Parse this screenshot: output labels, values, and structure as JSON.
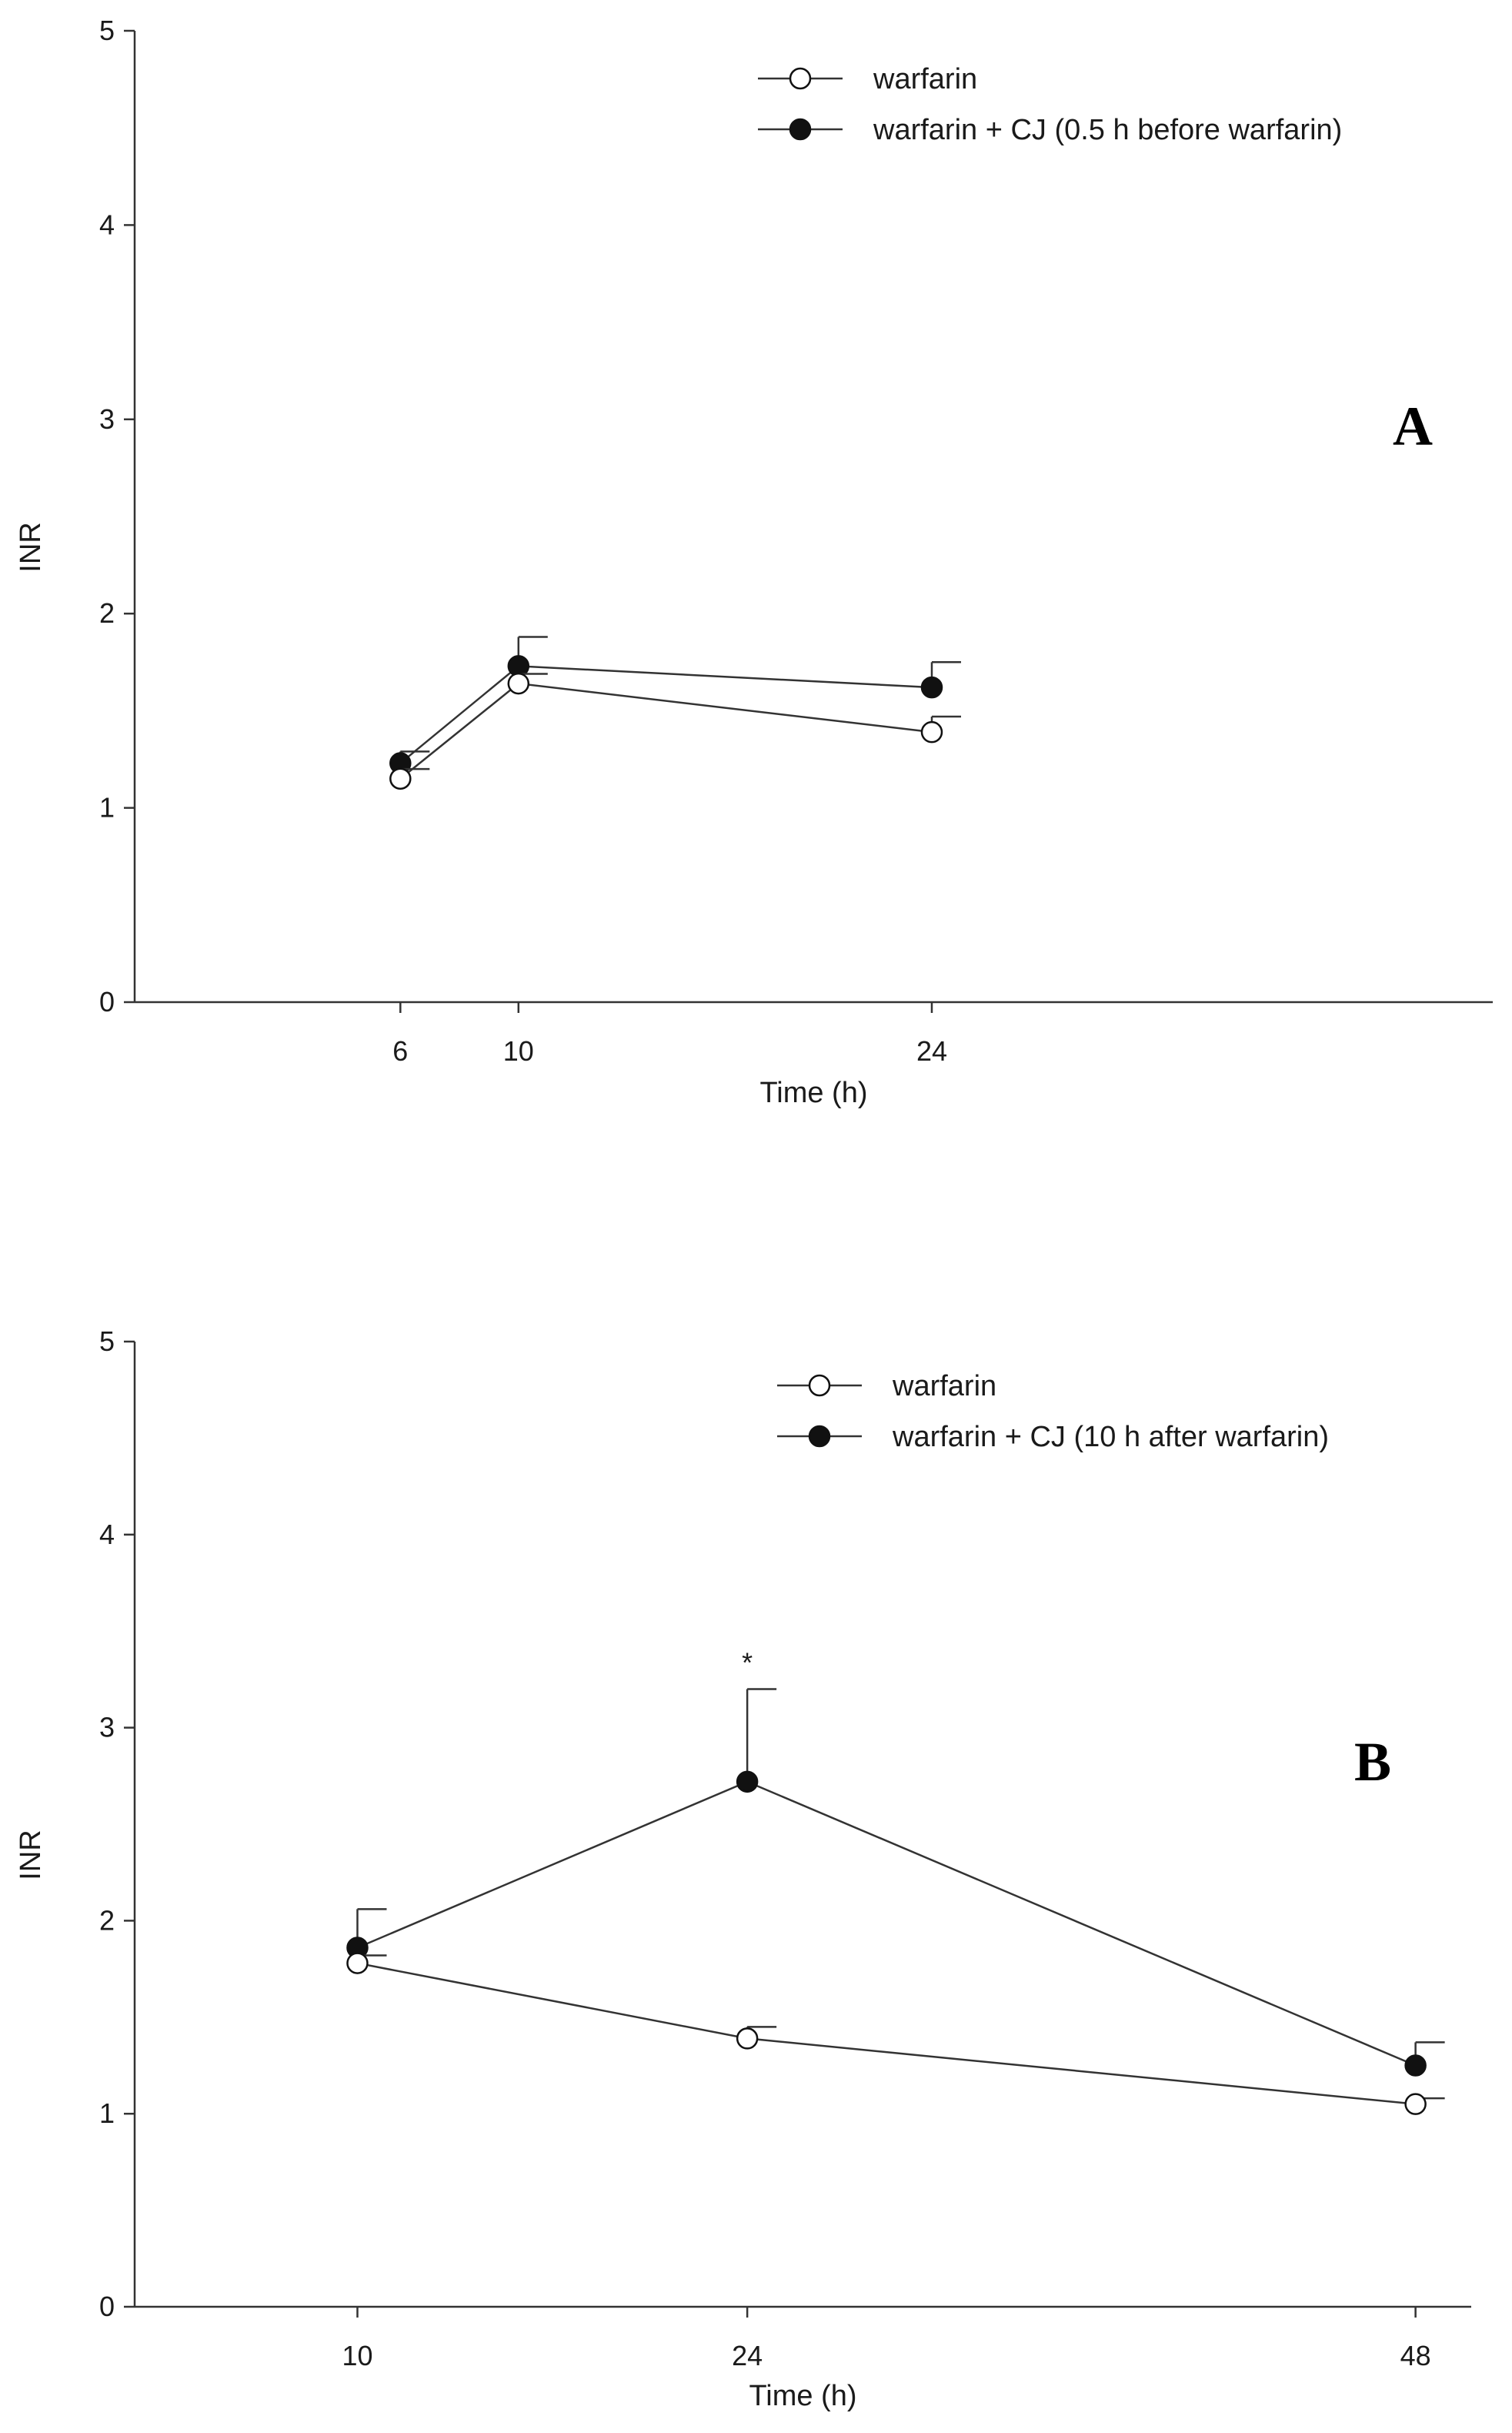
{
  "colors": {
    "line": "#333333",
    "open_fill": "#ffffff",
    "closed_fill": "#111111",
    "text": "#1a1a1a"
  },
  "chart_data": [
    {
      "type": "line",
      "panel": "A",
      "xlabel": "Time (h)",
      "ylabel": "INR",
      "xlim": [
        -3,
        43
      ],
      "ylim": [
        0,
        5
      ],
      "x": [
        6,
        10,
        24
      ],
      "xticks": [
        6,
        10,
        24
      ],
      "yticks": [
        0,
        1,
        2,
        3,
        4,
        5
      ],
      "legend_position": "top-right",
      "series": [
        {
          "name": "warfarin",
          "marker": "open",
          "values": [
            1.15,
            1.64,
            1.39
          ],
          "error": [
            0.05,
            0.05,
            0.08
          ]
        },
        {
          "name": "warfarin + CJ (0.5 h before warfarin)",
          "marker": "closed",
          "values": [
            1.23,
            1.73,
            1.62
          ],
          "error": [
            0.06,
            0.15,
            0.13
          ]
        }
      ],
      "annotations": []
    },
    {
      "type": "line",
      "panel": "B",
      "xlabel": "Time (h)",
      "ylabel": "INR",
      "xlim": [
        2,
        50
      ],
      "ylim": [
        0,
        5
      ],
      "x": [
        10,
        24,
        48
      ],
      "xticks": [
        10,
        24,
        48
      ],
      "yticks": [
        0,
        1,
        2,
        3,
        4,
        5
      ],
      "legend_position": "top-right",
      "series": [
        {
          "name": "warfarin",
          "marker": "open",
          "values": [
            1.78,
            1.39,
            1.05
          ],
          "error": [
            0.04,
            0.06,
            0.03
          ]
        },
        {
          "name": "warfarin + CJ (10 h after warfarin)",
          "marker": "closed",
          "values": [
            1.86,
            2.72,
            1.25
          ],
          "error": [
            0.2,
            0.48,
            0.12
          ]
        }
      ],
      "annotations": [
        {
          "text": "*",
          "x": 24,
          "series": 1
        }
      ]
    }
  ]
}
